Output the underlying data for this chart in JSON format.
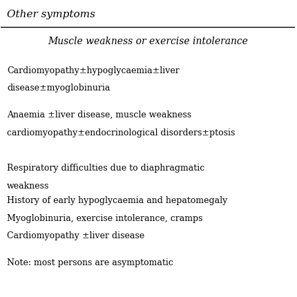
{
  "background_color": "#ffffff",
  "header_italic": "Other symptoms",
  "subheader_italic": "Muscle weakness or exercise intolerance",
  "line1": "Cardiomyopathy±hypoglycaemia±liver",
  "line2": "disease±myoglobinuria",
  "line3": "Anaemia ±liver disease, muscle weakness",
  "line4": "cardiomyopathy±endocrinological disorders±ptosis",
  "line5": "Respiratory difficulties due to diaphragmatic",
  "line6": "weakness",
  "line7": "History of early hypoglycaemia and hepatomegaly",
  "line8": "Myoglobinuria, exercise intolerance, cramps",
  "line9": "Cardiomyopathy ±liver disease",
  "line10": "Note: most persons are asymptomatic",
  "font_size_header": 11,
  "font_size_subheader": 10,
  "font_size_body": 9,
  "text_color": "#000000"
}
